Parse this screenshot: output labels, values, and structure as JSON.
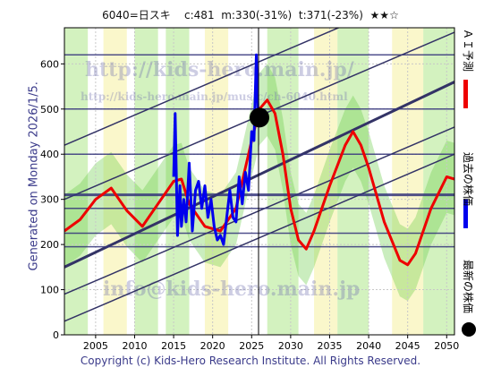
{
  "header": {
    "code": "6040=日スキ",
    "current": "c:481",
    "m_label": "m:330(-31%)",
    "t_label": "t:371(-23%)",
    "stars": "★★☆"
  },
  "side_note": "Generated on Monday 2026/1/5.",
  "footer": "Copyright (c) Kids-Hero Research Institute. All Rights Reserved.",
  "watermarks": [
    "http://kids-hero.main.jp/",
    "http://kids-hero.main.jp/music/ch-6040.html",
    "info@kids-hero.main.jp"
  ],
  "legend": [
    {
      "label": "ＡＩ予測",
      "color": "#ee0000"
    },
    {
      "label": "過去の株価",
      "color": "#0000ee"
    },
    {
      "label": "最新の株価",
      "color": "#000000"
    }
  ],
  "colors": {
    "prediction": "#ee0000",
    "past": "#0000ee",
    "trend": "#333366",
    "band_green": "#aee88a",
    "band_yellow": "#f5f0a0",
    "bg_band": "#e6e0f0"
  },
  "chart_data": {
    "type": "line",
    "xlim": [
      2001,
      2051
    ],
    "ylim": [
      0,
      680
    ],
    "xticks": [
      2005,
      2010,
      2015,
      2020,
      2025,
      2030,
      2035,
      2040,
      2045,
      2050
    ],
    "yticks": [
      0,
      100,
      200,
      300,
      400,
      500,
      600
    ],
    "horizontal_lines": [
      620,
      500,
      400,
      310,
      280,
      225,
      195
    ],
    "latest_point": {
      "x": 2026.0,
      "y": 481
    },
    "series": [
      {
        "name": "ＡＩ予測",
        "x": [
          2001,
          2003,
          2005,
          2007,
          2009,
          2011,
          2013,
          2015,
          2016,
          2017,
          2019,
          2021,
          2023,
          2025,
          2026,
          2027,
          2028,
          2029,
          2030,
          2031,
          2032,
          2033,
          2035,
          2037,
          2038,
          2039,
          2040,
          2042,
          2044,
          2045,
          2046,
          2048,
          2050,
          2051
        ],
        "y": [
          230,
          255,
          300,
          325,
          275,
          240,
          290,
          340,
          345,
          290,
          240,
          230,
          280,
          430,
          500,
          520,
          490,
          400,
          280,
          210,
          190,
          230,
          330,
          420,
          450,
          420,
          370,
          250,
          165,
          155,
          180,
          280,
          350,
          345
        ]
      },
      {
        "name": "過去の株価",
        "x": [
          2015.0,
          2015.2,
          2015.5,
          2015.8,
          2016.0,
          2016.3,
          2016.6,
          2017.0,
          2017.4,
          2017.8,
          2018.2,
          2018.6,
          2019.0,
          2019.4,
          2019.8,
          2020.2,
          2020.6,
          2021.0,
          2021.4,
          2021.8,
          2022.2,
          2022.6,
          2023.0,
          2023.4,
          2023.8,
          2024.2,
          2024.6,
          2025.0,
          2025.3,
          2025.6,
          2025.8,
          2026.0
        ],
        "y": [
          350,
          490,
          220,
          330,
          240,
          300,
          250,
          380,
          230,
          320,
          340,
          280,
          330,
          260,
          300,
          240,
          210,
          220,
          200,
          260,
          320,
          260,
          250,
          350,
          290,
          360,
          320,
          450,
          430,
          620,
          500,
          481
        ]
      }
    ],
    "trend_lines": [
      {
        "from": [
          2001,
          420
        ],
        "to": [
          2051,
          790
        ]
      },
      {
        "from": [
          2001,
          300
        ],
        "to": [
          2051,
          670
        ]
      },
      {
        "from": [
          2001,
          150
        ],
        "to": [
          2051,
          560
        ]
      },
      {
        "from": [
          2001,
          90
        ],
        "to": [
          2051,
          460
        ]
      },
      {
        "from": [
          2001,
          30
        ],
        "to": [
          2051,
          400
        ]
      }
    ]
  }
}
